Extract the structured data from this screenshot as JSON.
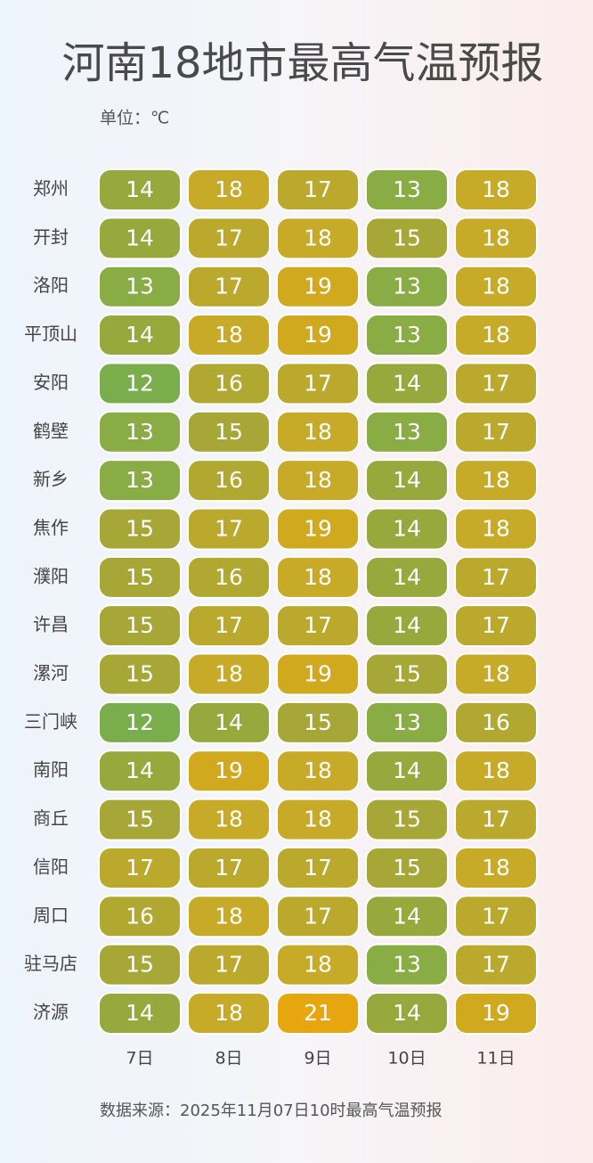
{
  "chart_data": {
    "type": "heatmap",
    "title": "河南18地市最高气温预报",
    "unit_label": "单位：℃",
    "source": "数据来源：2025年11月07日10时最高气温预报",
    "x": [
      "7日",
      "8日",
      "9日",
      "10日",
      "11日"
    ],
    "categories": [
      "郑州",
      "开封",
      "洛阳",
      "平顶山",
      "安阳",
      "鹤壁",
      "新乡",
      "焦作",
      "濮阳",
      "许昌",
      "漯河",
      "三门峡",
      "南阳",
      "商丘",
      "信阳",
      "周口",
      "驻马店",
      "济源"
    ],
    "values": [
      [
        14,
        18,
        17,
        13,
        18
      ],
      [
        14,
        17,
        18,
        15,
        18
      ],
      [
        13,
        17,
        19,
        13,
        18
      ],
      [
        14,
        18,
        19,
        13,
        18
      ],
      [
        12,
        16,
        17,
        14,
        17
      ],
      [
        13,
        15,
        18,
        13,
        17
      ],
      [
        13,
        16,
        18,
        14,
        18
      ],
      [
        15,
        17,
        19,
        14,
        18
      ],
      [
        15,
        16,
        18,
        14,
        17
      ],
      [
        15,
        17,
        17,
        14,
        17
      ],
      [
        15,
        18,
        19,
        15,
        18
      ],
      [
        12,
        14,
        15,
        13,
        16
      ],
      [
        14,
        19,
        18,
        14,
        18
      ],
      [
        15,
        18,
        18,
        15,
        17
      ],
      [
        17,
        17,
        17,
        15,
        18
      ],
      [
        16,
        18,
        17,
        14,
        17
      ],
      [
        15,
        17,
        18,
        13,
        17
      ],
      [
        14,
        18,
        21,
        14,
        19
      ]
    ],
    "clim": [
      12,
      21
    ],
    "colorscale": [
      "#7aae4c",
      "#a6a736",
      "#c6aa28",
      "#e8a60e"
    ]
  }
}
